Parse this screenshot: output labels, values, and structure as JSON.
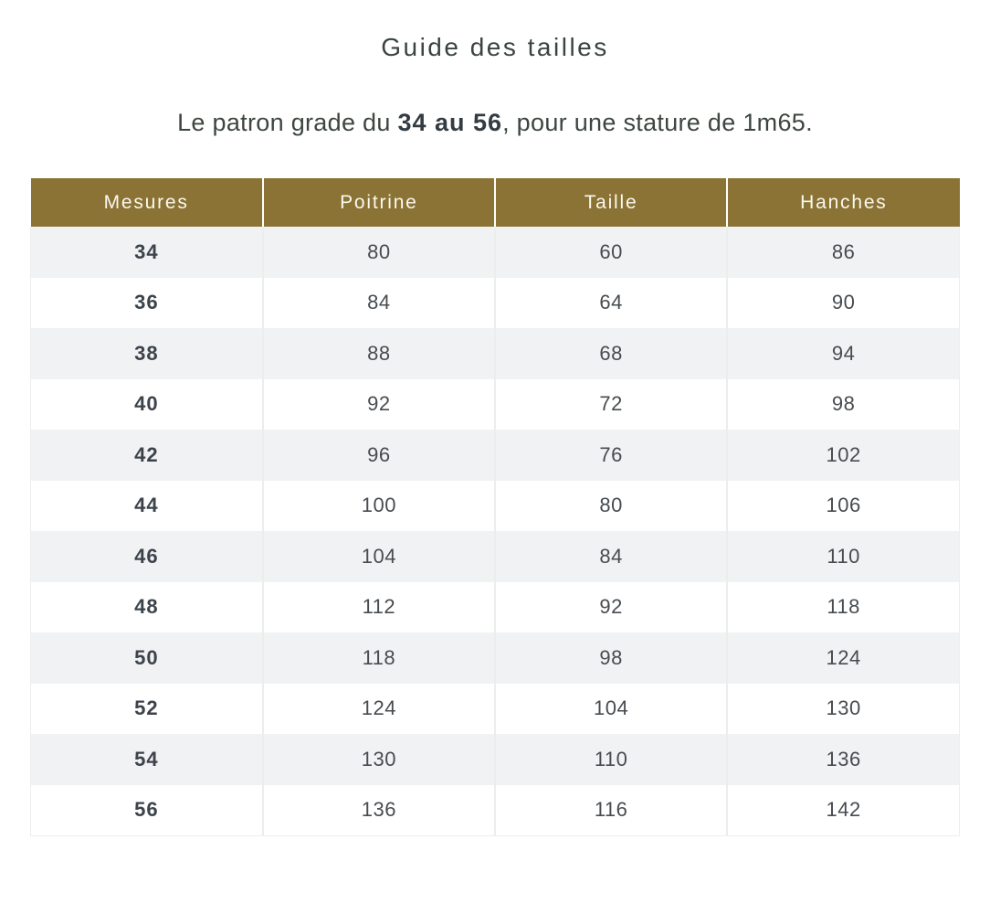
{
  "page": {
    "title": "Guide des tailles",
    "subtitle": {
      "prefix": "Le patron grade du ",
      "bold_range": "34 au 56",
      "suffix": ", pour une stature de 1m65."
    }
  },
  "table": {
    "headers": [
      "Mesures",
      "Poitrine",
      "Taille",
      "Hanches"
    ],
    "rows": [
      [
        "34",
        "80",
        "60",
        "86"
      ],
      [
        "36",
        "84",
        "64",
        "90"
      ],
      [
        "38",
        "88",
        "68",
        "94"
      ],
      [
        "40",
        "92",
        "72",
        "98"
      ],
      [
        "42",
        "96",
        "76",
        "102"
      ],
      [
        "44",
        "100",
        "80",
        "106"
      ],
      [
        "46",
        "104",
        "84",
        "110"
      ],
      [
        "48",
        "112",
        "92",
        "118"
      ],
      [
        "50",
        "118",
        "98",
        "124"
      ],
      [
        "52",
        "124",
        "104",
        "130"
      ],
      [
        "54",
        "130",
        "110",
        "136"
      ],
      [
        "56",
        "136",
        "116",
        "142"
      ]
    ]
  },
  "colors": {
    "header_bg": "#8a7335",
    "header_text": "#fbf8ef",
    "row_alt_bg": "#f1f2f3",
    "row_bg": "#ffffff",
    "text_dark": "#3c434a",
    "title_color": "#3b443f",
    "border_light": "#eceeee"
  }
}
